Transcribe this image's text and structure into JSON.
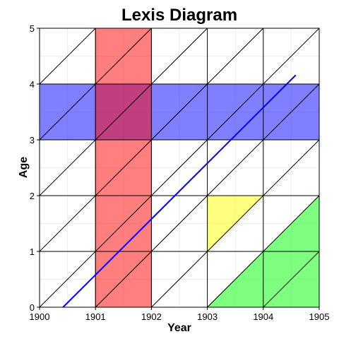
{
  "chart_data": {
    "type": "lexis",
    "title": "Lexis Diagram",
    "xlabel": "Year",
    "ylabel": "Age",
    "xlim": [
      1900,
      1905
    ],
    "ylim": [
      0,
      5
    ],
    "x_ticks": [
      "1900",
      "1901",
      "1902",
      "1903",
      "1904",
      "1905"
    ],
    "y_ticks": [
      "0",
      "1",
      "2",
      "3",
      "4",
      "5"
    ],
    "grid": true,
    "minor_grid": true,
    "shaded_regions": [
      {
        "kind": "age-band",
        "age_range": [
          3,
          4
        ],
        "color": "#0000ff",
        "opacity": 0.5
      },
      {
        "kind": "year-band",
        "year_range": [
          1901,
          1902
        ],
        "color": "#ff0000",
        "opacity": 0.5
      },
      {
        "kind": "triangle",
        "points": [
          [
            1903,
            1
          ],
          [
            1903,
            2
          ],
          [
            1904,
            2
          ]
        ],
        "color": "#ffff00",
        "opacity": 0.5
      },
      {
        "kind": "cohort",
        "points": [
          [
            1903,
            0
          ],
          [
            1905,
            0
          ],
          [
            1905,
            2
          ]
        ],
        "color": "#00ff00",
        "opacity": 0.5
      }
    ],
    "lifelines": [
      {
        "points": [
          [
            1900.42,
            0
          ],
          [
            1904.58,
            4.16
          ]
        ],
        "color": "#0000ff"
      }
    ]
  }
}
